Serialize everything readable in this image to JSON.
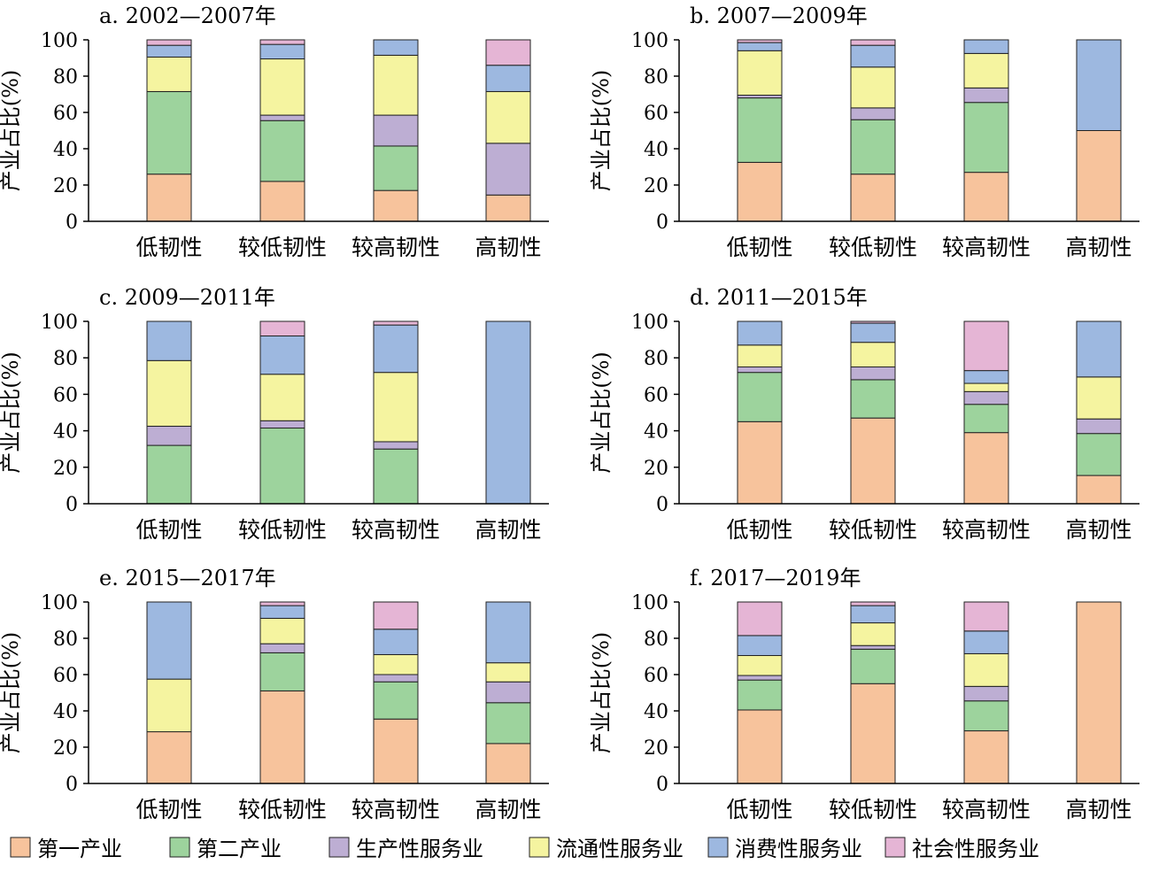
{
  "chart_data": {
    "type": "bar",
    "stacked": true,
    "ylabel": "产业占比(%)",
    "ylim": [
      0,
      100
    ],
    "yticks": [
      "0",
      "20",
      "40",
      "60",
      "80",
      "100"
    ],
    "categories": [
      "低韧性",
      "较低韧性",
      "较高韧性",
      "高韧性"
    ],
    "legend": [
      {
        "name": "第一产业",
        "color": "#F7C39C"
      },
      {
        "name": "第二产业",
        "color": "#9DD39D"
      },
      {
        "name": "生产性服务业",
        "color": "#BDAED3"
      },
      {
        "name": "流通性服务业",
        "color": "#F5F4A0"
      },
      {
        "name": "消费性服务业",
        "color": "#9DB8E0"
      },
      {
        "name": "社会性服务业",
        "color": "#E5B5D5"
      }
    ],
    "legend_position": "bottom",
    "panels": [
      {
        "title": "a. 2002—2007年",
        "xtick_labels": [
          "低韧性",
          "较低韧性",
          "较高韧性",
          "高韧性"
        ],
        "series": [
          {
            "name": "第一产业",
            "values": [
              26,
              22,
              17,
              14.5
            ]
          },
          {
            "name": "第二产业",
            "values": [
              45.5,
              33.5,
              24.5,
              0
            ]
          },
          {
            "name": "生产性服务业",
            "values": [
              0,
              3,
              17,
              28.5
            ]
          },
          {
            "name": "流通性服务业",
            "values": [
              19,
              31,
              33,
              28.5
            ]
          },
          {
            "name": "消费性服务业",
            "values": [
              6.5,
              8,
              8.5,
              14.5
            ]
          },
          {
            "name": "社会性服务业",
            "values": [
              3,
              2.5,
              0,
              14
            ]
          }
        ]
      },
      {
        "title": "b. 2007—2009年",
        "xtick_labels": [
          "低韧性",
          "较低韧性",
          "较高韧性",
          "高韧性"
        ],
        "series": [
          {
            "name": "第一产业",
            "values": [
              32.5,
              26,
              27,
              50
            ]
          },
          {
            "name": "第二产业",
            "values": [
              35.5,
              30,
              38.5,
              0
            ]
          },
          {
            "name": "生产性服务业",
            "values": [
              1.5,
              6.5,
              8,
              0
            ]
          },
          {
            "name": "流通性服务业",
            "values": [
              24.5,
              22.5,
              19,
              0
            ]
          },
          {
            "name": "消费性服务业",
            "values": [
              4.5,
              12,
              7.5,
              50
            ]
          },
          {
            "name": "社会性服务业",
            "values": [
              1.5,
              3,
              0,
              0
            ]
          }
        ]
      },
      {
        "title": "c. 2009—2011年",
        "xtick_labels": [
          "低韧性",
          "较低韧性",
          "较高韧性",
          "高韧性"
        ],
        "series": [
          {
            "name": "第一产业",
            "values": [
              0,
              0,
              0,
              0
            ]
          },
          {
            "name": "第二产业",
            "values": [
              32,
              41.5,
              30,
              0
            ]
          },
          {
            "name": "生产性服务业",
            "values": [
              10.5,
              4,
              4,
              0
            ]
          },
          {
            "name": "流通性服务业",
            "values": [
              36,
              25.5,
              38,
              0
            ]
          },
          {
            "name": "消费性服务业",
            "values": [
              21.5,
              21,
              26,
              100
            ]
          },
          {
            "name": "社会性服务业",
            "values": [
              0,
              8,
              2,
              0
            ]
          }
        ]
      },
      {
        "title": "d. 2011—2015年",
        "xtick_labels": [
          "低韧性",
          "较低韧性",
          "较高韧性",
          "高韧性"
        ],
        "series": [
          {
            "name": "第一产业",
            "values": [
              45,
              47,
              39,
              15.5
            ]
          },
          {
            "name": "第二产业",
            "values": [
              27,
              21,
              15.5,
              23
            ]
          },
          {
            "name": "生产性服务业",
            "values": [
              3,
              7,
              7,
              8
            ]
          },
          {
            "name": "流通性服务业",
            "values": [
              12,
              13.5,
              4.5,
              23
            ]
          },
          {
            "name": "消费性服务业",
            "values": [
              13,
              10.5,
              7,
              30.5
            ]
          },
          {
            "name": "社会性服务业",
            "values": [
              0,
              1,
              27,
              0
            ]
          }
        ]
      },
      {
        "title": "e. 2015—2017年",
        "xtick_labels": [
          "低韧性",
          "较低韧性",
          "较高韧性",
          "高韧性"
        ],
        "series": [
          {
            "name": "第一产业",
            "values": [
              28.5,
              51,
              35.5,
              22
            ]
          },
          {
            "name": "第二产业",
            "values": [
              0,
              21,
              20.5,
              22.5
            ]
          },
          {
            "name": "生产性服务业",
            "values": [
              0,
              5,
              4,
              11.5
            ]
          },
          {
            "name": "流通性服务业",
            "values": [
              29,
              14,
              11,
              10.5
            ]
          },
          {
            "name": "消费性服务业",
            "values": [
              42.5,
              7,
              14,
              33.5
            ]
          },
          {
            "name": "社会性服务业",
            "values": [
              0,
              2,
              15,
              0
            ]
          }
        ]
      },
      {
        "title": "f. 2017—2019年",
        "xtick_labels": [
          "低韧性",
          "较低韧性",
          "较高韧性",
          "高韧性"
        ],
        "series": [
          {
            "name": "第一产业",
            "values": [
              40.5,
              55,
              29,
              100
            ]
          },
          {
            "name": "第二产业",
            "values": [
              16.5,
              19,
              16.5,
              0
            ]
          },
          {
            "name": "生产性服务业",
            "values": [
              2.5,
              2,
              8,
              0
            ]
          },
          {
            "name": "流通性服务业",
            "values": [
              11,
              12.5,
              18,
              0
            ]
          },
          {
            "name": "消费性服务业",
            "values": [
              11,
              9.5,
              12.5,
              0
            ]
          },
          {
            "name": "社会性服务业",
            "values": [
              18.5,
              2,
              16,
              0
            ]
          }
        ]
      }
    ]
  }
}
